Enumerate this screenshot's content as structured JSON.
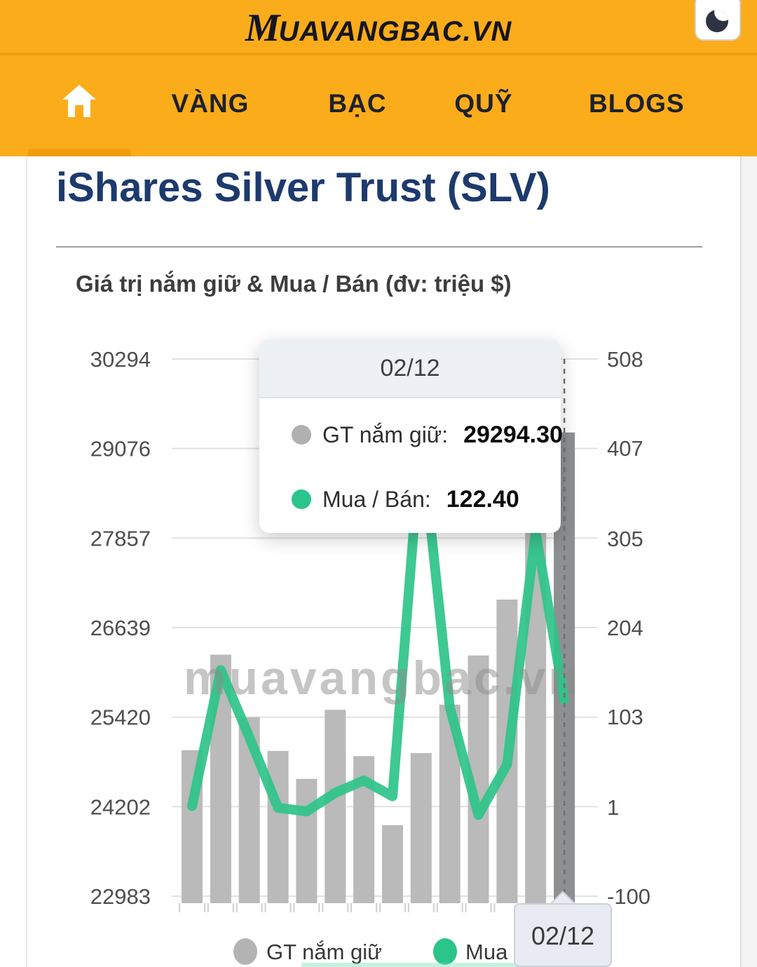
{
  "header": {
    "logo_m": "M",
    "logo_rest": "UAVANGBAC.VN",
    "theme_toggle_icon": "moon-icon"
  },
  "nav": {
    "home_icon": "home-icon",
    "items": [
      {
        "label": "VÀNG"
      },
      {
        "label": "BẠC"
      },
      {
        "label": "QUỸ"
      },
      {
        "label": "BLOGS"
      }
    ]
  },
  "page": {
    "title": "iShares Silver Trust (SLV)",
    "chart_heading": "Giá trị nắm giữ & Mua / Bán (đv: triệu $)",
    "watermark": "muavangbac.vn"
  },
  "tooltip": {
    "date": "02/12",
    "rows": [
      {
        "label": "GT nắm giữ:",
        "value": "29294.30",
        "color": "#b0b0b0"
      },
      {
        "label": "Mua / Bán:",
        "value": "122.40",
        "color": "#2bc48a"
      }
    ]
  },
  "x_label_box": "02/12",
  "legend": [
    {
      "label": "GT nắm giữ",
      "color": "#b3b3b3"
    },
    {
      "label": "Mua / Bán",
      "color": "#2bc48a"
    }
  ],
  "chart_data": {
    "type": "bar+line (dual axis)",
    "title": "Giá trị nắm giữ & Mua / Bán (đv: triệu $)",
    "categories": [
      "",
      "",
      "",
      "",
      "",
      "",
      "",
      "",
      "",
      "",
      "",
      "",
      "",
      "02/12"
    ],
    "series": [
      {
        "name": "GT nắm giữ",
        "type": "bar",
        "axis": "left",
        "values": [
          24970,
          26270,
          25420,
          24960,
          24580,
          25520,
          24890,
          23950,
          24930,
          25590,
          26260,
          27020,
          28150,
          29294.3
        ]
      },
      {
        "name": "Mua / Bán",
        "type": "line",
        "axis": "right",
        "values": [
          2,
          156,
          80,
          0,
          -4,
          17,
          31,
          13,
          420,
          114,
          -8,
          49,
          312,
          122.4
        ]
      }
    ],
    "left_axis": {
      "ticks": [
        30294,
        29076,
        27857,
        26639,
        25420,
        24202,
        22983
      ],
      "range": [
        22983,
        30294
      ]
    },
    "right_axis": {
      "ticks": [
        508,
        407,
        305,
        204,
        103,
        1,
        -100
      ],
      "range": [
        -100,
        508
      ]
    },
    "highlighted_index": 13,
    "highlighted_label": "02/12",
    "grid": true,
    "legend_position": "bottom",
    "colors": {
      "bar": "#b9bab9",
      "bar_highlight": "#8e8f90",
      "line": "#2ec389",
      "grid": "#e2e2e2",
      "axis_text": "#4e4e4e",
      "watermark": "#8c8c8c"
    }
  }
}
